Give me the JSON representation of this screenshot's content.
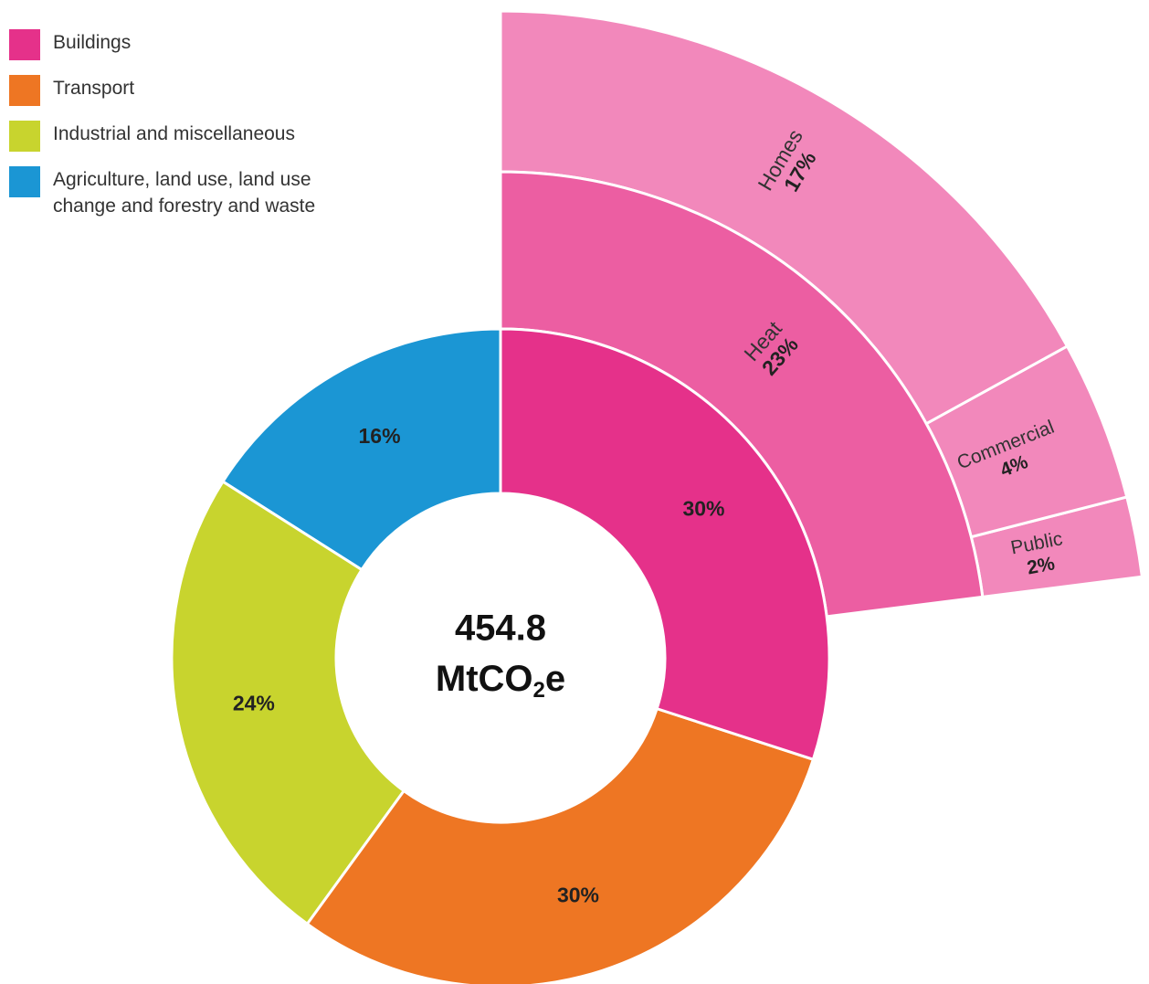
{
  "chart_data": {
    "type": "sunburst",
    "categories": [
      "Buildings",
      "Transport",
      "Industrial and miscellaneous",
      "Agriculture, land use, land use change and forestry and waste"
    ],
    "values": [
      30,
      30,
      24,
      16
    ],
    "value_labels": [
      "30%",
      "30%",
      "24%",
      "16%"
    ],
    "colors": [
      "#e5318a",
      "#ee7623",
      "#c8d42e",
      "#1b96d4"
    ],
    "center_label": "454.8",
    "center_unit": [
      "MtCO",
      "2",
      "e"
    ],
    "breakdown": [
      {
        "name": "Heat",
        "value": 23,
        "value_label": "23%",
        "color": "#ec5ea2",
        "children_color": "#f288bb",
        "children": [
          {
            "name": "Homes",
            "value": 17,
            "value_label": "17%"
          },
          {
            "name": "Commercial",
            "value": 4,
            "value_label": "4%"
          },
          {
            "name": "Public",
            "value": 2,
            "value_label": "2%"
          }
        ]
      }
    ]
  }
}
